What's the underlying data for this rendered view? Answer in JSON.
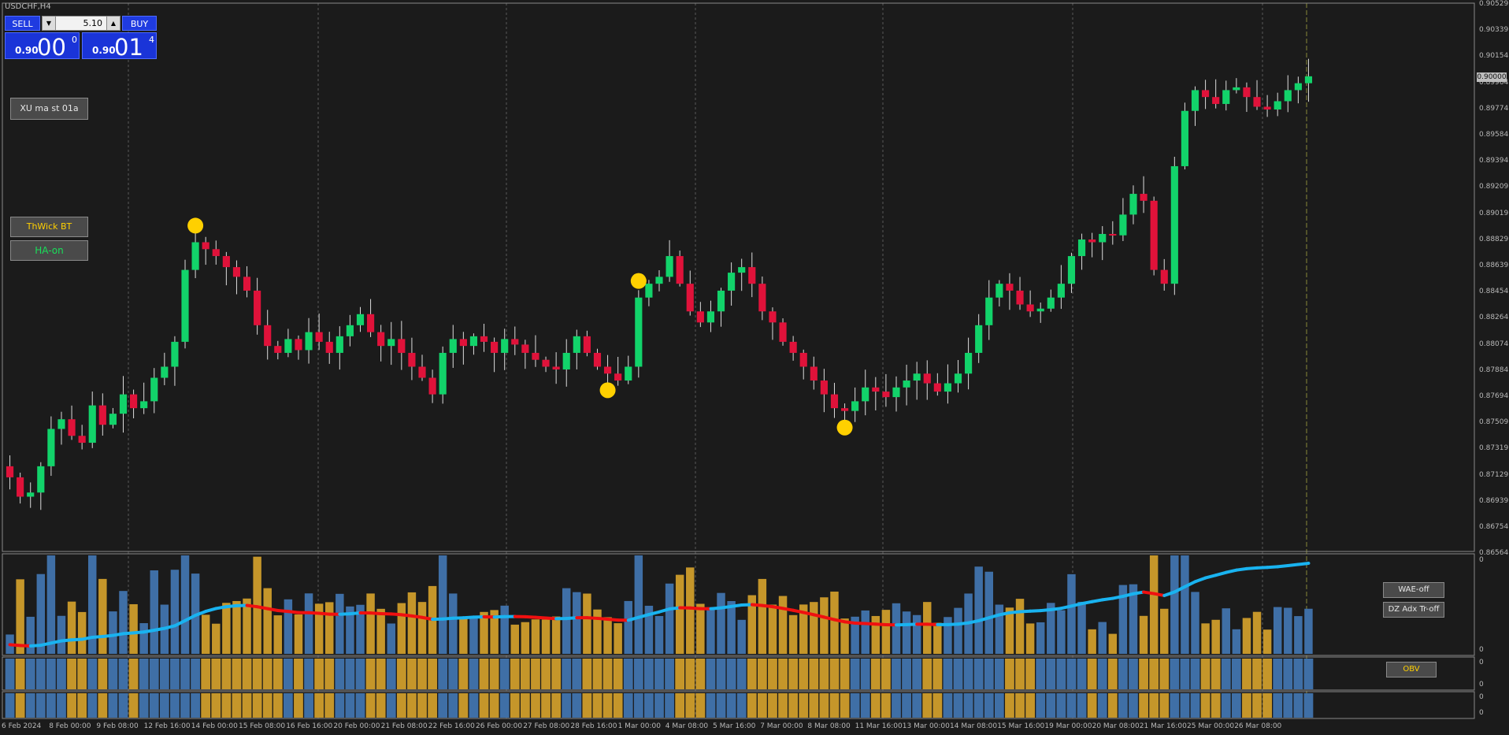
{
  "window": {
    "title": "USDCHF,H4"
  },
  "trade_panel": {
    "sell_label": "SELL",
    "buy_label": "BUY",
    "lot_value": "5.10",
    "bid_prefix": "0.90",
    "bid_big": "00",
    "bid_sup": "0",
    "ask_prefix": "0.90",
    "ask_big": "01",
    "ask_sup": "4"
  },
  "buttons": {
    "xu_label": "XU ma st 01a",
    "thwick_label": "ThWick BT",
    "ha_label": "HA-on",
    "wae_label": "WAE-off",
    "dz_label": "DZ Adx Tr-off",
    "obv_label": "OBV"
  },
  "colors": {
    "background": "#1b1b1b",
    "bull": "#12d36a",
    "bear": "#e0123a",
    "dot": "#ffd000",
    "line_up": "#19b3f0",
    "line_down": "#f01010",
    "hist_blue": "#3f6fa6",
    "hist_gold": "#c5962a",
    "thwick_text": "#ffd000",
    "ha_text": "#19e05a"
  },
  "price_axis": {
    "labels": [
      "0.90529",
      "0.90339",
      "0.90154",
      "0.89964",
      "0.89774",
      "0.89584",
      "0.89394",
      "0.89209",
      "0.89019",
      "0.88829",
      "0.88639",
      "0.88454",
      "0.88264",
      "0.88074",
      "0.87884",
      "0.87694",
      "0.87509",
      "0.87319",
      "0.87129",
      "0.86939",
      "0.86754",
      "0.86564"
    ],
    "current": "0.90000"
  },
  "sub_axis": {
    "labels": [
      "0",
      "0",
      "0",
      "0",
      "0",
      "0"
    ]
  },
  "time_axis": {
    "labels": [
      "6 Feb 2024",
      "8 Feb 00:00",
      "9 Feb 08:00",
      "12 Feb 16:00",
      "14 Feb 00:00",
      "15 Feb 08:00",
      "16 Feb 16:00",
      "20 Feb 00:00",
      "21 Feb 08:00",
      "22 Feb 16:00",
      "26 Feb 00:00",
      "27 Feb 08:00",
      "28 Feb 16:00",
      "1 Mar 00:00",
      "4 Mar 08:00",
      "5 Mar 16:00",
      "7 Mar 00:00",
      "8 Mar 08:00",
      "11 Mar 16:00",
      "13 Mar 00:00",
      "14 Mar 08:00",
      "15 Mar 16:00",
      "19 Mar 00:00",
      "20 Mar 08:00",
      "21 Mar 16:00",
      "25 Mar 00:00",
      "26 Mar 08:00"
    ]
  },
  "chart_data": {
    "type": "candlestick",
    "symbol": "USDCHF",
    "timeframe": "H4",
    "ylim": [
      0.86564,
      0.90529
    ],
    "closes_path": [
      0.871,
      0.8696,
      0.8699,
      0.8718,
      0.8745,
      0.8752,
      0.874,
      0.8735,
      0.8762,
      0.8748,
      0.8756,
      0.877,
      0.876,
      0.8765,
      0.8782,
      0.879,
      0.8808,
      0.886,
      0.888,
      0.8875,
      0.887,
      0.8862,
      0.8855,
      0.8845,
      0.882,
      0.8805,
      0.88,
      0.881,
      0.8802,
      0.8815,
      0.8808,
      0.88,
      0.8812,
      0.882,
      0.8828,
      0.8815,
      0.8805,
      0.881,
      0.88,
      0.879,
      0.8782,
      0.877,
      0.88,
      0.881,
      0.8805,
      0.8812,
      0.8808,
      0.88,
      0.881,
      0.8806,
      0.88,
      0.8795,
      0.879,
      0.8788,
      0.88,
      0.8812,
      0.88,
      0.879,
      0.8785,
      0.878,
      0.879,
      0.884,
      0.885,
      0.8855,
      0.887,
      0.885,
      0.883,
      0.8822,
      0.883,
      0.8845,
      0.8858,
      0.8862,
      0.885,
      0.883,
      0.8822,
      0.8808,
      0.88,
      0.879,
      0.878,
      0.877,
      0.876,
      0.8758,
      0.8765,
      0.8775,
      0.8772,
      0.8768,
      0.8775,
      0.878,
      0.8785,
      0.8778,
      0.8772,
      0.8778,
      0.8785,
      0.88,
      0.882,
      0.884,
      0.885,
      0.8845,
      0.8835,
      0.883,
      0.8832,
      0.884,
      0.885,
      0.887,
      0.8882,
      0.888,
      0.8886,
      0.8885,
      0.89,
      0.8915,
      0.891,
      0.886,
      0.885,
      0.8935,
      0.8975,
      0.899,
      0.8985,
      0.898,
      0.899,
      0.8992,
      0.8985,
      0.8978,
      0.8976,
      0.8982,
      0.899,
      0.8995,
      0.9
    ],
    "signal_dots": [
      {
        "bar": 18,
        "position": "high"
      },
      {
        "bar": 61,
        "position": "high"
      },
      {
        "bar": 58,
        "position": "low"
      },
      {
        "bar": 81,
        "position": "low"
      }
    ]
  }
}
